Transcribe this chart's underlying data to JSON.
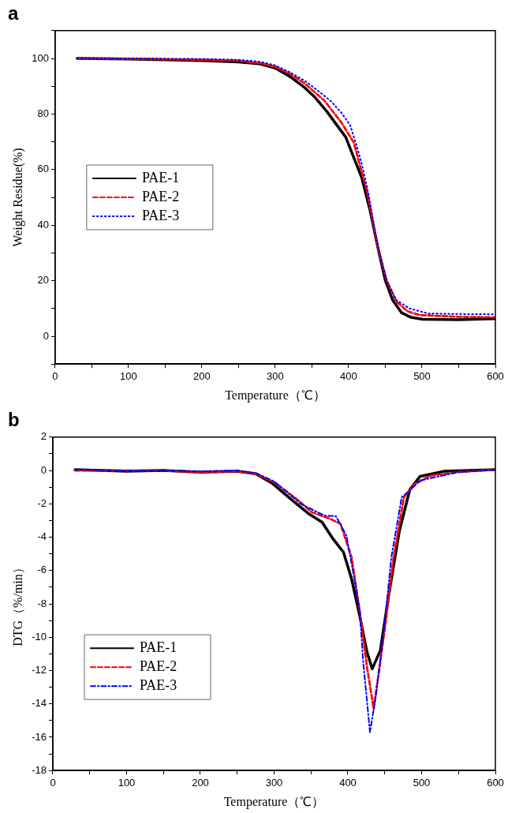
{
  "chart_data": [
    {
      "type": "line",
      "title": "a",
      "xlabel": "Temperature（℃）",
      "ylabel": "Weight Residue(%)",
      "xlim": [
        0,
        600
      ],
      "ylim": [
        -10,
        110
      ],
      "xticks": [
        0,
        {
          "value": 50,
          "label": null
        },
        100,
        {
          "value": 150,
          "label": null
        },
        200,
        {
          "value": 250,
          "label": null
        },
        300,
        {
          "value": 350,
          "label": null
        },
        400,
        {
          "value": 450,
          "label": null
        },
        500,
        {
          "value": 550,
          "label": null
        },
        600
      ],
      "yticks": [
        {
          "value": -10,
          "label": null
        },
        0,
        {
          "value": 10,
          "label": null
        },
        20,
        {
          "value": 30,
          "label": null
        },
        40,
        {
          "value": 50,
          "label": null
        },
        60,
        {
          "value": 70,
          "label": null
        },
        80,
        {
          "value": 90,
          "label": null
        },
        100,
        {
          "value": 110,
          "label": null
        }
      ],
      "grid": false,
      "legend": "left",
      "marker": "none",
      "series": [
        {
          "name": "PAE-1",
          "color": "#000000",
          "line_style": "solid",
          "x": [
            30,
            100,
            200,
            250,
            280,
            300,
            320,
            340,
            353,
            370,
            396,
            418,
            429,
            440,
            450,
            460,
            472,
            485,
            501,
            550,
            600
          ],
          "values": [
            100,
            99.8,
            99.2,
            98.7,
            98,
            96.5,
            93.5,
            89.5,
            86.3,
            81,
            71.7,
            57,
            45.5,
            31.8,
            20.1,
            13,
            8.5,
            6.8,
            6.1,
            6,
            6.3
          ]
        },
        {
          "name": "PAE-2",
          "color": "#ff0000",
          "line_style": "dashed",
          "x": [
            30,
            100,
            200,
            250,
            280,
            300,
            320,
            340,
            367,
            390,
            407,
            425,
            440,
            452,
            465,
            480,
            497,
            550,
            600
          ],
          "values": [
            100,
            99.9,
            99.5,
            99.2,
            98.3,
            97,
            94.5,
            91,
            84.8,
            77,
            69.7,
            52.2,
            31.8,
            20,
            12.5,
            9,
            7.6,
            7,
            6.8
          ]
        },
        {
          "name": "PAE-3",
          "color": "#0000ff",
          "line_style": "dotted",
          "x": [
            30,
            100,
            200,
            250,
            280,
            300,
            320,
            340,
            360,
            375,
            390,
            402,
            410,
            418,
            427,
            440,
            452,
            465,
            483,
            508,
            550,
            600
          ],
          "values": [
            100,
            100,
            99.8,
            99.5,
            98.8,
            97.5,
            95,
            92,
            88,
            84.8,
            80.5,
            76,
            69.4,
            62,
            51.3,
            32,
            20,
            13,
            10,
            8.2,
            8,
            7.9
          ]
        }
      ]
    },
    {
      "type": "line",
      "title": "b",
      "xlabel": "Temperature（℃）",
      "ylabel": "DTG（%/min）",
      "xlim": [
        0,
        600
      ],
      "ylim": [
        -18,
        2
      ],
      "xticks": [
        0,
        {
          "value": 50,
          "label": null
        },
        100,
        {
          "value": 150,
          "label": null
        },
        200,
        {
          "value": 250,
          "label": null
        },
        300,
        {
          "value": 350,
          "label": null
        },
        400,
        {
          "value": 450,
          "label": null
        },
        500,
        {
          "value": 550,
          "label": null
        },
        600
      ],
      "yticks": [
        -18,
        {
          "value": -17,
          "label": null
        },
        -16,
        {
          "value": -15,
          "label": null
        },
        -14,
        {
          "value": -13,
          "label": null
        },
        -12,
        {
          "value": -11,
          "label": null
        },
        -10,
        {
          "value": -9,
          "label": null
        },
        -8,
        {
          "value": -7,
          "label": null
        },
        -6,
        {
          "value": -5,
          "label": null
        },
        -4,
        {
          "value": -3,
          "label": null
        },
        -2,
        {
          "value": -1,
          "label": null
        },
        0,
        {
          "value": 1,
          "label": null
        },
        2
      ],
      "grid": false,
      "legend": "bottom left",
      "marker": "none",
      "series": [
        {
          "name": "PAE-1",
          "color": "#000000",
          "line_style": "solid",
          "x": [
            30,
            100,
            150,
            200,
            250,
            275,
            297,
            325,
            347,
            365,
            379,
            394,
            405,
            416,
            426,
            433,
            444,
            455,
            470,
            484,
            498,
            530,
            600
          ],
          "values": [
            0.05,
            -0.05,
            0,
            -0.1,
            -0.05,
            -0.2,
            -0.75,
            -1.8,
            -2.6,
            -3.1,
            -4.05,
            -4.9,
            -6.5,
            -8.7,
            -10.9,
            -11.9,
            -10.8,
            -7.6,
            -3.6,
            -1.15,
            -0.35,
            -0.05,
            0.05
          ]
        },
        {
          "name": "PAE-2",
          "color": "#ff0000",
          "line_style": "dashed",
          "x": [
            30,
            100,
            150,
            200,
            250,
            275,
            300,
            333,
            351,
            376,
            390,
            405,
            416,
            426,
            435,
            441,
            451,
            462,
            476,
            491,
            513,
            550,
            600
          ],
          "values": [
            0,
            0,
            0,
            -0.1,
            -0.05,
            -0.2,
            -0.7,
            -1.8,
            -2.5,
            -2.9,
            -3.2,
            -5.2,
            -8.4,
            -11.8,
            -14.3,
            -12.4,
            -9.2,
            -5.2,
            -1.6,
            -0.8,
            -0.3,
            -0.1,
            0.05
          ]
        },
        {
          "name": "PAE-3",
          "color": "#0000ff",
          "line_style": "dashdot",
          "x": [
            30,
            100,
            150,
            200,
            250,
            275,
            300,
            336,
            368,
            384,
            398,
            408,
            416,
            421,
            430,
            438,
            448,
            459,
            473,
            484,
            498,
            550,
            600
          ],
          "values": [
            0.05,
            0,
            0,
            -0.05,
            0,
            -0.15,
            -0.65,
            -2,
            -2.7,
            -2.75,
            -3.9,
            -6.3,
            -8.4,
            -11.6,
            -15.7,
            -13.5,
            -10,
            -5.2,
            -1.6,
            -1.2,
            -0.6,
            -0.1,
            0.05
          ]
        }
      ]
    }
  ]
}
